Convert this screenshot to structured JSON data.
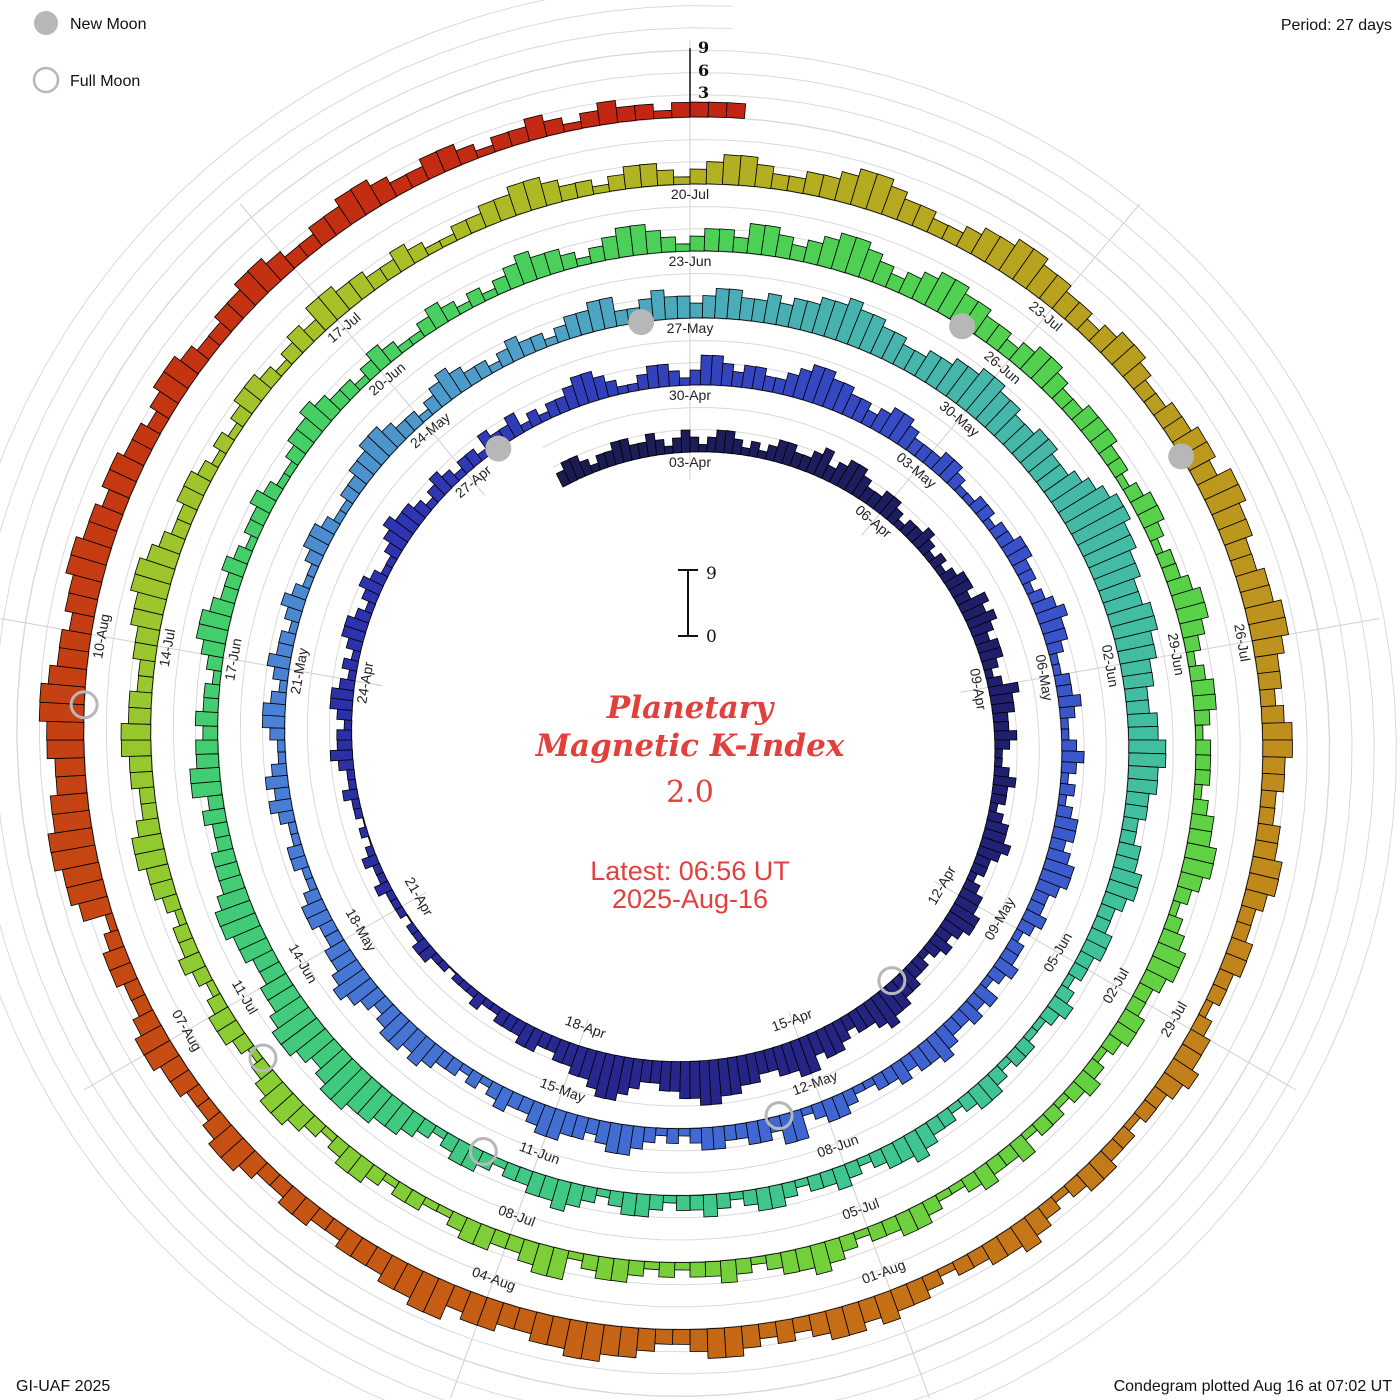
{
  "header": {
    "legend": [
      {
        "label": "New Moon",
        "type": "new"
      },
      {
        "label": "Full Moon",
        "type": "full"
      }
    ],
    "period_label": "Period: 27 days"
  },
  "footer": {
    "left": "GI-UAF 2025",
    "right": "Condegram plotted Aug 16 at 07:02 UT"
  },
  "center": {
    "title_line1": "Planetary",
    "title_line2": "Magnetic K-Index",
    "current_value": "2.0",
    "latest_line1": "Latest: 06:56 UT",
    "latest_line2": "2025-Aug-16",
    "scale_top": "9",
    "scale_bottom": "0"
  },
  "axis": {
    "top_scale_labels": [
      "9",
      "6",
      "3"
    ]
  },
  "colors": {
    "accent_red": "#e2403c",
    "moon_gray": "#b7b7b7",
    "grid": "#d9d9d9",
    "baseline": "#a0a0a0",
    "radial": "#cfcfcf",
    "bar_stroke": "#000000",
    "text": "#111111"
  },
  "chart_data": {
    "type": "bar",
    "variant": "condegram-spiral",
    "title": "Planetary Magnetic K-Index",
    "start_date": "2025-04-01",
    "days_per_ring": 27,
    "hours_per_sample": 3,
    "ylim": [
      0,
      9
    ],
    "grid_levels": [
      3,
      6,
      9
    ],
    "first_label_day_offset": 2,
    "label_step_days": 3,
    "date_labels": [
      "03-Apr",
      "06-Apr",
      "09-Apr",
      "12-Apr",
      "15-Apr",
      "18-Apr",
      "21-Apr",
      "24-Apr",
      "27-Apr",
      "30-Apr",
      "03-May",
      "06-May",
      "09-May",
      "12-May",
      "15-May",
      "18-May",
      "21-May",
      "24-May",
      "27-May",
      "30-May",
      "02-Jun",
      "05-Jun",
      "08-Jun",
      "11-Jun",
      "14-Jun",
      "17-Jun",
      "20-Jun",
      "23-Jun",
      "26-Jun",
      "29-Jun",
      "02-Jul",
      "05-Jul",
      "08-Jul",
      "11-Jul",
      "14-Jul",
      "17-Jul",
      "20-Jul",
      "23-Jul",
      "26-Jul",
      "29-Jul",
      "01-Aug",
      "04-Aug",
      "07-Aug",
      "10-Aug"
    ],
    "moons": [
      {
        "date": "2025-04-13",
        "type": "full"
      },
      {
        "date": "2025-04-27",
        "type": "new"
      },
      {
        "date": "2025-05-12",
        "type": "full"
      },
      {
        "date": "2025-05-26",
        "type": "new"
      },
      {
        "date": "2025-06-11",
        "type": "full"
      },
      {
        "date": "2025-06-25",
        "type": "new"
      },
      {
        "date": "2025-07-10",
        "type": "full"
      },
      {
        "date": "2025-07-24",
        "type": "new"
      },
      {
        "date": "2025-08-09",
        "type": "full"
      }
    ],
    "color_stops": [
      [
        0.0,
        "#1b1b52"
      ],
      [
        0.06,
        "#1f1f6e"
      ],
      [
        0.12,
        "#27278f"
      ],
      [
        0.18,
        "#2e34b2"
      ],
      [
        0.24,
        "#3850c8"
      ],
      [
        0.3,
        "#3f66d2"
      ],
      [
        0.36,
        "#4a80d6"
      ],
      [
        0.395,
        "#4fa0c8"
      ],
      [
        0.42,
        "#47b4ae"
      ],
      [
        0.47,
        "#3fc29b"
      ],
      [
        0.53,
        "#40ca7e"
      ],
      [
        0.58,
        "#46cf62"
      ],
      [
        0.63,
        "#52d14d"
      ],
      [
        0.68,
        "#68d13f"
      ],
      [
        0.73,
        "#89cd33"
      ],
      [
        0.78,
        "#a8c128"
      ],
      [
        0.81,
        "#b5ab20"
      ],
      [
        0.85,
        "#bf8e1c"
      ],
      [
        0.89,
        "#c56f17"
      ],
      [
        0.93,
        "#c64d13"
      ],
      [
        0.97,
        "#c43312"
      ],
      [
        1.0,
        "#c22413"
      ]
    ],
    "k_3h_by_day": [
      "23321223",
      "32232123",
      "21233212",
      "12332234",
      "23443223",
      "32122321",
      "21233243",
      "43233212",
      "43322321",
      "12322123",
      "34322123",
      "34432321",
      "22334454",
      "33234435",
      "54433445",
      "56655443",
      "34566544",
      "33223322",
      "21121110",
      "11221101",
      "11211210",
      "10112112",
      "32212332",
      "12123321",
      "23211234",
      "33212321",
      "22132231",
      "21223443",
      "21123321",
      "24432332",
      "23455443",
      "32344322",
      "23321122",
      "12233221",
      "23433211",
      "22321123",
      "21212332",
      "34432232",
      "12232132",
      "32234332",
      "32211233",
      "21442332",
      "23321212",
      "34432334",
      "43223212",
      "12234344",
      "32345433",
      "22332112",
      "21123232",
      "11233212",
      "32212321",
      "12332112",
      "23344322",
      "12343221",
      "23221233",
      "44223433",
      "23443343",
      "44556554",
      "43344556",
      "65544554",
      "45678877",
      "66556655",
      "44334455",
      "44332233",
      "44322332",
      "21232112",
      "21233212",
      "23433212",
      "32212332",
      "12322123",
      "32123433",
      "22123321",
      "23445566",
      "54566544",
      "33445543",
      "33223244",
      "33232212",
      "34432232",
      "12232112",
      "33432212",
      "32112321",
      "21234332",
      "12344321",
      "23324432",
      "34554323",
      "45544332",
      "34432233",
      "32212332",
      "12234432",
      "12332122",
      "21233443",
      "21234432",
      "23321232",
      "12213223",
      "21123322",
      "12343321",
      "23221212",
      "33214432",
      "23321122",
      "12332123",
      "44321233",
      "21232212",
      "33443223",
      "34433223",
      "34455432",
      "23321212",
      "33212324",
      "43322321",
      "12233443",
      "22123321",
      "23443223",
      "34554332",
      "23445544",
      "33234432",
      "23344355",
      "44334455",
      "43323443",
      "32233443",
      "22332212",
      "33432212",
      "23321234",
      "33221233",
      "43443232",
      "34432234",
      "45544334",
      "43554433",
      "32233223",
      "44322334",
      "43223321",
      "45566554",
      "45566544",
      "34455443",
      "44332344",
      "32233443",
      "22334432",
      "23321223",
      "21232212",
      "222"
    ]
  }
}
